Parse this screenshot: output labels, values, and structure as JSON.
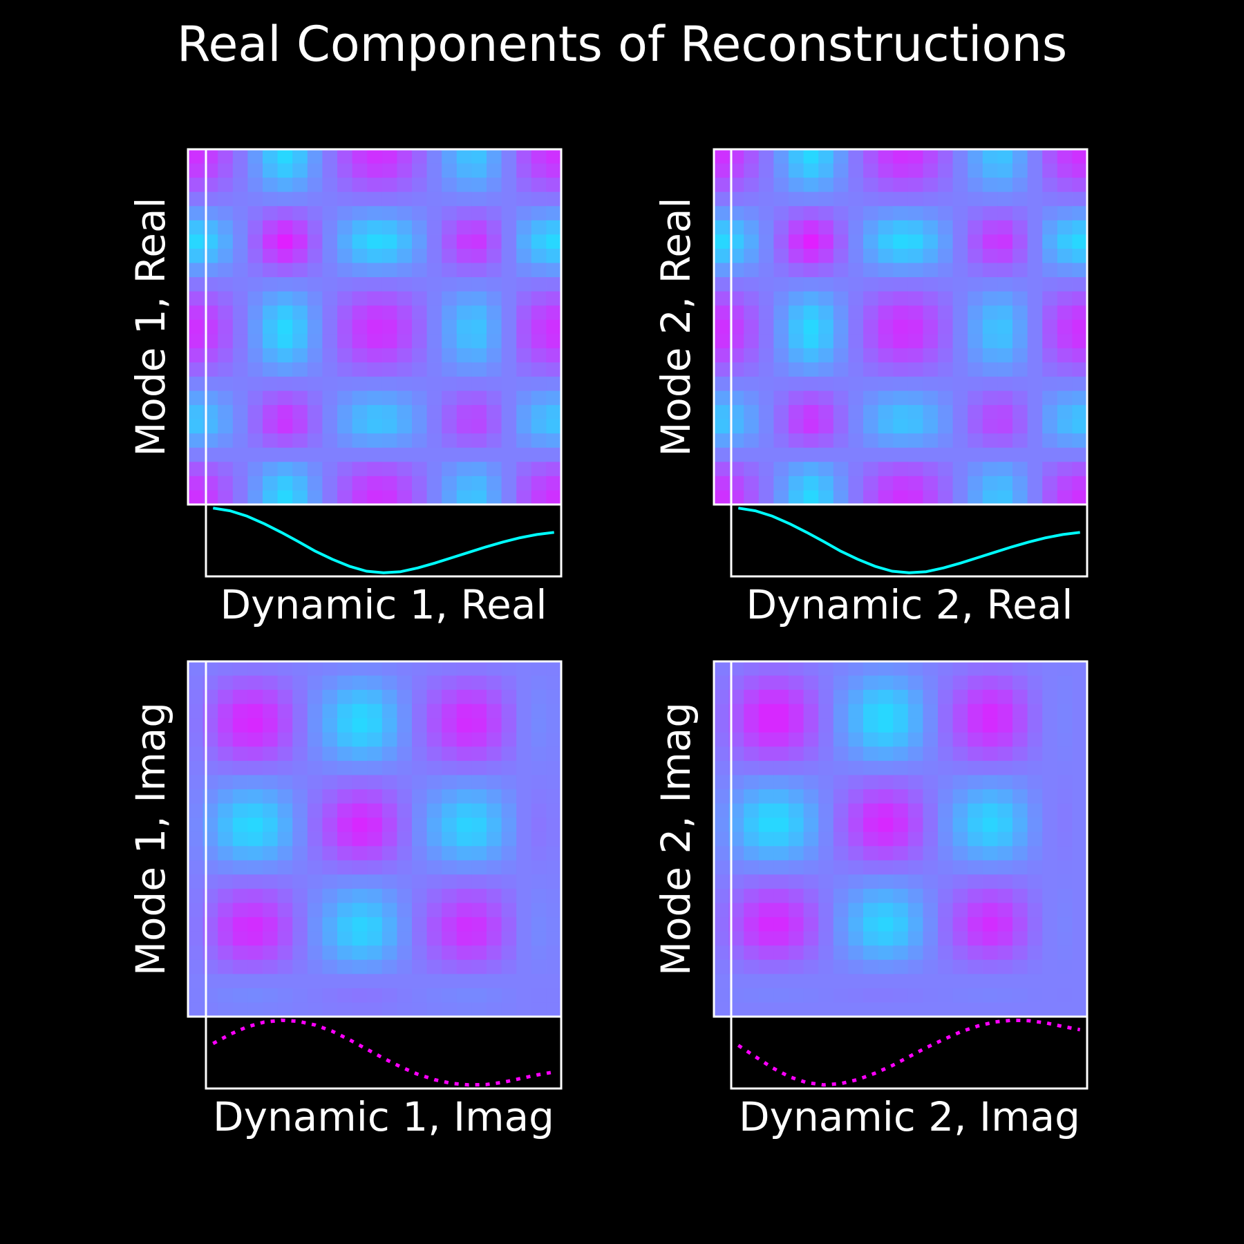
{
  "colors": {
    "background": "#000000",
    "frame": "#ffffff",
    "real_line": "#00ffff",
    "imag_line": "#ff00ff",
    "colormap": "cool"
  },
  "chart_data": {
    "type": "heatmap",
    "title": "Real Components of Reconstructions",
    "grid": false,
    "panels": [
      {
        "heatmap_type": "heatmap",
        "ylabel": "Mode 1, Real",
        "xlabel": "Dynamic 1, Real",
        "mode_profile": [
          -0.9,
          -0.75,
          -0.45,
          -0.1,
          0.3,
          0.75,
          1.0,
          0.75,
          0.3,
          -0.1,
          -0.45,
          -0.75,
          -0.9,
          -0.85,
          -0.6,
          -0.3,
          0.05,
          0.4,
          0.7,
          0.75,
          0.4,
          0.0,
          -0.45,
          -0.75,
          -0.9
        ],
        "dynamics_type": "line",
        "line_style": "solid",
        "line_color": "#00ffff",
        "dynamics": [
          1.0,
          0.95,
          0.85,
          0.71,
          0.55,
          0.38,
          0.2,
          0.05,
          -0.08,
          -0.17,
          -0.2,
          -0.18,
          -0.11,
          -0.02,
          0.08,
          0.18,
          0.28,
          0.37,
          0.45,
          0.51,
          0.55
        ]
      },
      {
        "heatmap_type": "heatmap",
        "ylabel": "Mode 2, Real",
        "xlabel": "Dynamic 2, Real",
        "mode_profile": [
          -0.9,
          -0.75,
          -0.45,
          -0.1,
          0.3,
          0.75,
          1.0,
          0.75,
          0.3,
          -0.1,
          -0.45,
          -0.75,
          -0.9,
          -0.85,
          -0.6,
          -0.3,
          0.05,
          0.4,
          0.7,
          0.75,
          0.4,
          0.0,
          -0.45,
          -0.75,
          -0.9
        ],
        "dynamics_type": "line",
        "line_style": "solid",
        "line_color": "#00ffff",
        "dynamics": [
          1.0,
          0.95,
          0.85,
          0.71,
          0.55,
          0.38,
          0.2,
          0.05,
          -0.08,
          -0.17,
          -0.2,
          -0.18,
          -0.11,
          -0.02,
          0.08,
          0.18,
          0.28,
          0.37,
          0.45,
          0.51,
          0.55
        ]
      },
      {
        "heatmap_type": "heatmap",
        "ylabel": "Mode 1, Imag",
        "xlabel": "Dynamic 1, Imag",
        "mode_profile": [
          -0.1,
          -0.35,
          -0.65,
          -0.9,
          -0.95,
          -0.8,
          -0.5,
          -0.15,
          0.2,
          0.5,
          0.8,
          0.95,
          0.85,
          0.55,
          0.2,
          -0.15,
          -0.45,
          -0.7,
          -0.9,
          -0.85,
          -0.6,
          -0.3,
          0.0,
          0.1,
          0.05
        ],
        "dynamics_type": "line",
        "line_style": "dotted",
        "line_color": "#ff00ff",
        "dynamics": [
          0.35,
          0.6,
          0.8,
          0.93,
          0.98,
          0.95,
          0.85,
          0.68,
          0.45,
          0.2,
          -0.05,
          -0.28,
          -0.48,
          -0.63,
          -0.73,
          -0.77,
          -0.76,
          -0.7,
          -0.6,
          -0.5,
          -0.42
        ]
      },
      {
        "heatmap_type": "heatmap",
        "ylabel": "Mode 2, Imag",
        "xlabel": "Dynamic 2, Imag",
        "mode_profile": [
          0.2,
          0.45,
          0.75,
          0.95,
          0.95,
          0.75,
          0.45,
          0.1,
          -0.25,
          -0.55,
          -0.85,
          -0.95,
          -0.8,
          -0.5,
          -0.15,
          0.2,
          0.5,
          0.78,
          0.92,
          0.8,
          0.5,
          0.2,
          0.0,
          -0.05,
          0.0
        ],
        "dynamics_type": "line",
        "line_style": "dotted",
        "line_color": "#ff00ff",
        "dynamics": [
          0.2,
          -0.05,
          -0.3,
          -0.5,
          -0.63,
          -0.68,
          -0.65,
          -0.56,
          -0.42,
          -0.25,
          -0.05,
          0.15,
          0.33,
          0.5,
          0.63,
          0.72,
          0.76,
          0.75,
          0.7,
          0.62,
          0.55
        ]
      }
    ]
  }
}
